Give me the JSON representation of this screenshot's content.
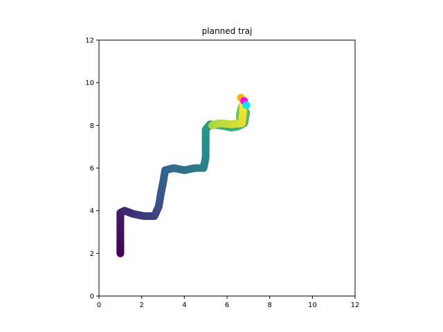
{
  "chart_data": {
    "type": "scatter",
    "title": "planned traj",
    "xlabel": "",
    "ylabel": "",
    "xlim": [
      0,
      12
    ],
    "ylim": [
      0,
      12
    ],
    "xticks": [
      "0",
      "2",
      "4",
      "6",
      "8",
      "10",
      "12"
    ],
    "yticks": [
      "0",
      "2",
      "4",
      "6",
      "8",
      "10",
      "12"
    ],
    "grid": false,
    "colormap": "viridis",
    "trajectory": [
      {
        "x": 1.0,
        "y": 2.0
      },
      {
        "x": 1.0,
        "y": 2.6
      },
      {
        "x": 1.0,
        "y": 3.3
      },
      {
        "x": 1.0,
        "y": 3.9
      },
      {
        "x": 1.2,
        "y": 4.0
      },
      {
        "x": 1.6,
        "y": 3.85
      },
      {
        "x": 2.1,
        "y": 3.75
      },
      {
        "x": 2.6,
        "y": 3.75
      },
      {
        "x": 2.8,
        "y": 4.2
      },
      {
        "x": 2.9,
        "y": 4.8
      },
      {
        "x": 3.0,
        "y": 5.3
      },
      {
        "x": 3.1,
        "y": 5.9
      },
      {
        "x": 3.5,
        "y": 6.0
      },
      {
        "x": 4.0,
        "y": 5.9
      },
      {
        "x": 4.5,
        "y": 6.0
      },
      {
        "x": 4.9,
        "y": 6.0
      },
      {
        "x": 5.0,
        "y": 6.5
      },
      {
        "x": 5.0,
        "y": 7.2
      },
      {
        "x": 5.0,
        "y": 7.8
      },
      {
        "x": 5.2,
        "y": 8.05
      },
      {
        "x": 5.7,
        "y": 8.0
      },
      {
        "x": 6.2,
        "y": 7.9
      },
      {
        "x": 6.5,
        "y": 7.95
      },
      {
        "x": 6.8,
        "y": 8.1
      },
      {
        "x": 6.9,
        "y": 8.6
      },
      {
        "x": 6.7,
        "y": 8.9
      },
      {
        "x": 6.6,
        "y": 8.5
      },
      {
        "x": 6.6,
        "y": 8.1
      },
      {
        "x": 6.2,
        "y": 8.05
      },
      {
        "x": 5.7,
        "y": 8.1
      },
      {
        "x": 5.3,
        "y": 8.0
      },
      {
        "x": 5.6,
        "y": 8.1
      },
      {
        "x": 6.2,
        "y": 8.05
      },
      {
        "x": 6.7,
        "y": 8.1
      },
      {
        "x": 6.75,
        "y": 8.6
      },
      {
        "x": 6.75,
        "y": 9.05
      }
    ],
    "markers": [
      {
        "x": 6.65,
        "y": 9.3,
        "color": "#ffb000"
      },
      {
        "x": 6.8,
        "y": 9.15,
        "color": "#ff00ff"
      },
      {
        "x": 6.9,
        "y": 8.95,
        "color": "#00e5ff"
      }
    ]
  }
}
